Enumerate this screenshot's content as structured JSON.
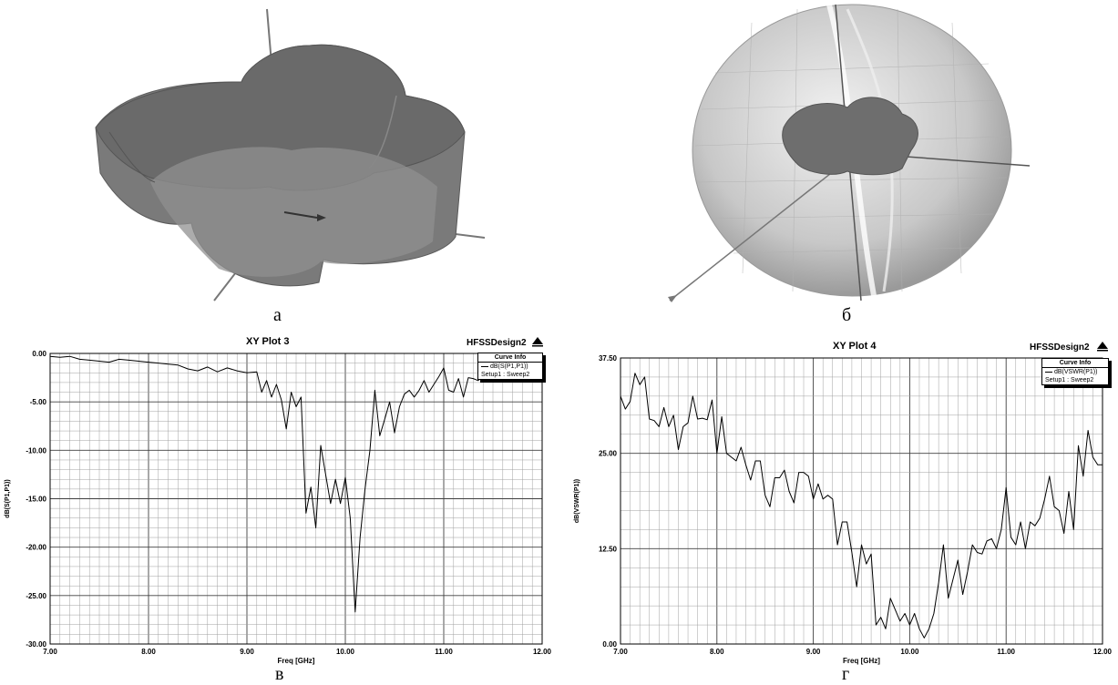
{
  "captions": {
    "a": "а",
    "b": "б",
    "v": "в",
    "g": "г"
  },
  "colors": {
    "grid": "#a0a0a0",
    "gridMajor": "#404040",
    "curve": "#000000",
    "shape": "#6e6e6e"
  },
  "plot3": {
    "brand": "HFSSDesign2",
    "legend": {
      "header": "Curve Info",
      "curve_name": "dB(S(P1,P1))",
      "setup": "Setup1 : Sweep2"
    }
  },
  "plot4": {
    "brand": "HFSSDesign2",
    "legend": {
      "header": "Curve Info",
      "curve_name": "dB(VSWR(P1))",
      "setup": "Setup1 : Sweep2"
    }
  },
  "chart_data": [
    {
      "type": "line",
      "title": "XY Plot 3",
      "xlabel": "Freq [GHz]",
      "ylabel": "dB(S(P1,P1))",
      "xlim": [
        7.0,
        12.0
      ],
      "ylim": [
        -30.0,
        0.0
      ],
      "xticks": [
        "7.00",
        "8.00",
        "9.00",
        "10.00",
        "11.00",
        "12.00"
      ],
      "yticks": [
        "0.00",
        "-5.00",
        "-10.00",
        "-15.00",
        "-20.00",
        "-25.00",
        "-30.00"
      ],
      "grid": true,
      "legend": "top-right",
      "series": [
        {
          "name": "dB(S(P1,P1))",
          "x": [
            7.0,
            7.1,
            7.2,
            7.3,
            7.4,
            7.5,
            7.6,
            7.7,
            7.8,
            7.9,
            8.0,
            8.1,
            8.2,
            8.3,
            8.4,
            8.5,
            8.6,
            8.7,
            8.8,
            8.9,
            9.0,
            9.1,
            9.15,
            9.2,
            9.25,
            9.3,
            9.35,
            9.4,
            9.45,
            9.5,
            9.55,
            9.6,
            9.65,
            9.7,
            9.75,
            9.8,
            9.85,
            9.9,
            9.95,
            10.0,
            10.05,
            10.1,
            10.15,
            10.2,
            10.25,
            10.3,
            10.35,
            10.4,
            10.45,
            10.5,
            10.55,
            10.6,
            10.65,
            10.7,
            10.75,
            10.8,
            10.85,
            10.9,
            10.95,
            11.0,
            11.05,
            11.1,
            11.15,
            11.2,
            11.25,
            11.3,
            11.35,
            11.4,
            11.5,
            11.6,
            11.7,
            11.8,
            11.9,
            12.0
          ],
          "y": [
            -0.3,
            -0.4,
            -0.3,
            -0.6,
            -0.7,
            -0.8,
            -0.9,
            -0.6,
            -0.7,
            -0.8,
            -0.9,
            -1.0,
            -1.1,
            -1.2,
            -1.6,
            -1.8,
            -1.4,
            -1.9,
            -1.5,
            -1.8,
            -2.0,
            -1.9,
            -4.0,
            -2.8,
            -4.5,
            -3.2,
            -4.8,
            -7.8,
            -4.0,
            -5.5,
            -4.5,
            -16.5,
            -13.8,
            -18.0,
            -9.5,
            -12.5,
            -15.5,
            -13.0,
            -15.5,
            -12.8,
            -17.0,
            -26.7,
            -19.0,
            -14.0,
            -10.0,
            -3.8,
            -8.5,
            -6.8,
            -5.0,
            -8.2,
            -5.5,
            -4.2,
            -3.8,
            -4.5,
            -3.8,
            -2.8,
            -4.0,
            -3.2,
            -2.4,
            -1.5,
            -3.8,
            -4.0,
            -2.6,
            -4.5,
            -2.5,
            -2.6,
            -2.8,
            -2.3,
            -2.6,
            -2.9,
            -2.2,
            -2.1,
            -1.8,
            -2.0
          ]
        }
      ]
    },
    {
      "type": "line",
      "title": "XY Plot 4",
      "xlabel": "Freq [GHz]",
      "ylabel": "dB(VSWR(P1))",
      "xlim": [
        7.0,
        12.0
      ],
      "ylim": [
        0.0,
        37.5
      ],
      "xticks": [
        "7.00",
        "8.00",
        "9.00",
        "10.00",
        "11.00",
        "12.00"
      ],
      "yticks": [
        "37.50",
        "25.00",
        "12.50",
        "0.00"
      ],
      "grid": true,
      "legend": "top-right",
      "series": [
        {
          "name": "dB(VSWR(P1))",
          "x": [
            7.0,
            7.05,
            7.1,
            7.15,
            7.2,
            7.25,
            7.3,
            7.35,
            7.4,
            7.45,
            7.5,
            7.55,
            7.6,
            7.65,
            7.7,
            7.75,
            7.8,
            7.85,
            7.9,
            7.95,
            8.0,
            8.05,
            8.1,
            8.15,
            8.2,
            8.25,
            8.3,
            8.35,
            8.4,
            8.45,
            8.5,
            8.55,
            8.6,
            8.65,
            8.7,
            8.75,
            8.8,
            8.85,
            8.9,
            8.95,
            9.0,
            9.05,
            9.1,
            9.15,
            9.2,
            9.25,
            9.3,
            9.35,
            9.4,
            9.45,
            9.5,
            9.55,
            9.6,
            9.65,
            9.7,
            9.75,
            9.8,
            9.85,
            9.9,
            9.95,
            10.0,
            10.05,
            10.1,
            10.15,
            10.2,
            10.25,
            10.3,
            10.35,
            10.4,
            10.45,
            10.5,
            10.55,
            10.6,
            10.65,
            10.7,
            10.75,
            10.8,
            10.85,
            10.9,
            10.95,
            11.0,
            11.05,
            11.1,
            11.15,
            11.2,
            11.25,
            11.3,
            11.35,
            11.4,
            11.45,
            11.5,
            11.55,
            11.6,
            11.65,
            11.7,
            11.75,
            11.8,
            11.85,
            11.9,
            11.95,
            12.0
          ],
          "y": [
            32.5,
            30.8,
            31.8,
            35.5,
            34.0,
            35.0,
            29.5,
            29.3,
            28.5,
            31.0,
            28.5,
            30.0,
            25.5,
            28.5,
            29.0,
            32.5,
            29.5,
            29.6,
            29.4,
            32.0,
            25.0,
            29.8,
            25.0,
            24.5,
            24.0,
            25.8,
            23.5,
            21.5,
            24.0,
            24.0,
            19.5,
            18.0,
            21.8,
            21.8,
            22.8,
            20.0,
            18.5,
            22.5,
            22.5,
            22.0,
            19.0,
            21.0,
            19.0,
            19.5,
            19.0,
            13.0,
            16.0,
            16.0,
            12.0,
            7.5,
            13.0,
            10.5,
            11.8,
            2.5,
            3.5,
            2.0,
            6.0,
            4.5,
            3.0,
            4.0,
            2.5,
            4.0,
            2.0,
            0.8,
            2.0,
            4.0,
            8.0,
            13.0,
            6.0,
            8.5,
            11.0,
            6.5,
            9.5,
            13.0,
            12.0,
            11.8,
            13.5,
            13.8,
            12.5,
            15.0,
            20.5,
            14.0,
            13.0,
            16.0,
            12.5,
            16.0,
            15.5,
            16.5,
            19.0,
            22.0,
            18.0,
            17.5,
            14.5,
            20.0,
            15.0,
            26.0,
            22.0,
            28.0,
            24.5,
            23.5,
            23.5
          ]
        }
      ]
    }
  ]
}
